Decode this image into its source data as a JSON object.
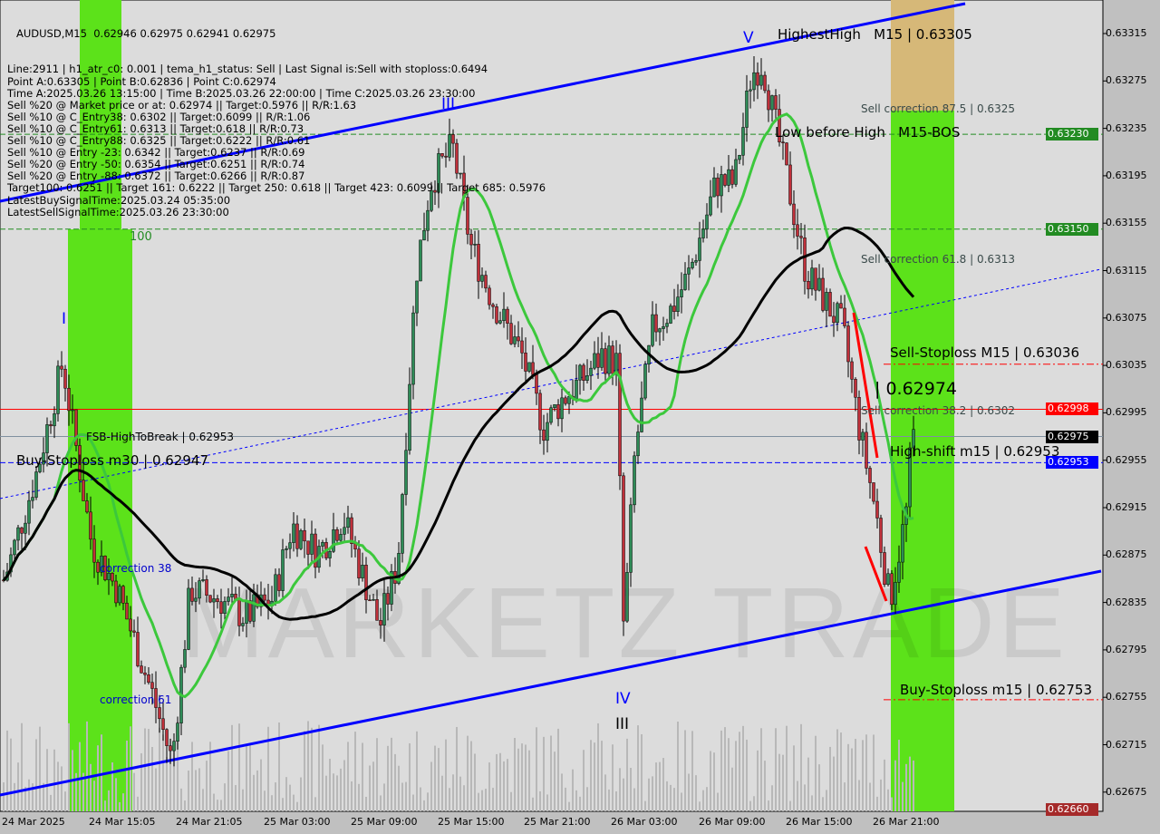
{
  "symbol_header": "AUDUSD,M15  0.62946 0.62975 0.62941 0.62975",
  "info_lines": [
    "Line:2911 | h1_atr_c0: 0.001 | tema_h1_status: Sell | Last Signal is:Sell with stoploss:0.6494",
    "Point A:0.63305 | Point B:0.62836 | Point C:0.62974",
    "Time A:2025.03.26 13:15:00 | Time B:2025.03.26 22:00:00 | Time C:2025.03.26 23:30:00",
    "Sell %20 @ Market price or at: 0.62974 || Target:0.5976 || R/R:1.63",
    "Sell %10 @ C_Entry38: 0.6302 || Target:0.6099 || R/R:1.06",
    "Sell %10 @ C_Entry61: 0.6313 || Target:0.618 || R/R:0.73",
    "Sell %10 @ C_Entry88: 0.6325 || Target:0.6222 || R/R:0.61",
    "Sell %10 @ Entry -23: 0.6342 || Target:0.6237 || R/R:0.69",
    "Sell %20 @ Entry -50: 0.6354 || Target:0.6251 || R/R:0.74",
    "Sell %20 @ Entry -88: 0.6372 || Target:0.6266 || R/R:0.87",
    "Target100: 0.6251 || Target 161: 0.6222 || Target 250: 0.618 || Target 423: 0.6099 || Target 685: 0.5976",
    "LatestBuySignalTime:2025.03.24 05:35:00",
    "LatestSellSignalTime:2025.03.26 23:30:00"
  ],
  "chart_labels": {
    "highest_high": "HighestHigh   M15 | 0.63305",
    "low_before_high": "Low before High   M15-BOS",
    "sell_corr_875": "Sell correction 87.5 | 0.6325",
    "sell_corr_618": "Sell correction 61.8 | 0.6313",
    "sell_stoploss": "Sell-Stoploss M15 | 0.63036",
    "sell_corr_382": "Sell correction 38.2 | 0.6302",
    "current_c": "| 0.62974",
    "high_shift": "High-shift m15 | 0.62953",
    "buy_stoploss_m15": "Buy-Stoploss m15 | 0.62753",
    "buy_stoploss_m30": "Buy-Stoploss m30 | 0.62947",
    "fsb": "FSB-HighToBreak | 0.62953",
    "correction_38": "correction 38",
    "correction_61": "correction 61",
    "level_100": "100",
    "wave_i": "I",
    "wave_iii": "III",
    "wave_v": "V",
    "wave_iv": "IV",
    "wave_iii_b": "III"
  },
  "watermark": "MARKETZ TRADE",
  "colors": {
    "background": "#dcdcdc",
    "bull_candle": "#2e8b57",
    "bear_candle": "#c0303a",
    "channel": "#0000ff",
    "ma_fast": "#3cc83c",
    "ma_slow": "#000000",
    "zone_green": "#5ce21a",
    "zone_tan": "#d6b878",
    "resistance": "#ff0000",
    "current_price": "#000000",
    "high_shift": "#0000ff"
  },
  "chart_data": {
    "type": "candlestick",
    "timeframe": "M15",
    "ylim": [
      0.6266,
      0.6335
    ],
    "y_ticks": [
      "0.63315",
      "0.63275",
      "0.63235",
      "0.63195",
      "0.63155",
      "0.63115",
      "0.63075",
      "0.63035",
      "0.62995",
      "0.62955",
      "0.62915",
      "0.62875",
      "0.62835",
      "0.62795",
      "0.62755",
      "0.62715",
      "0.62675"
    ],
    "x_ticks": [
      "24 Mar 2025",
      "24 Mar 15:05",
      "24 Mar 21:05",
      "25 Mar 03:00",
      "25 Mar 09:00",
      "25 Mar 15:00",
      "25 Mar 21:00",
      "26 Mar 03:00",
      "26 Mar 09:00",
      "26 Mar 15:00",
      "26 Mar 21:00"
    ],
    "price_tags": [
      {
        "value": "0.63230",
        "color": "#228b22"
      },
      {
        "value": "0.63150",
        "color": "#228b22"
      },
      {
        "value": "0.62998",
        "color": "#ff0000"
      },
      {
        "value": "0.62975",
        "color": "#000000"
      },
      {
        "value": "0.62953",
        "color": "#0000ff"
      },
      {
        "value": "0.62660",
        "color": "#a52a2a"
      }
    ],
    "price_path": [
      [
        "2025-03-24 09:15",
        0.62854
      ],
      [
        "2025-03-24 11:30",
        0.62946
      ],
      [
        "2025-03-24 13:15",
        0.63037
      ],
      [
        "2025-03-24 15:15",
        0.62884
      ],
      [
        "2025-03-24 17:00",
        0.62846
      ],
      [
        "2025-03-24 19:30",
        0.62754
      ],
      [
        "2025-03-24 20:45",
        0.62701
      ],
      [
        "2025-03-24 22:00",
        0.62846
      ],
      [
        "2025-03-25 00:00",
        0.62838
      ],
      [
        "2025-03-25 01:45",
        0.62823
      ],
      [
        "2025-03-25 03:40",
        0.62838
      ],
      [
        "2025-03-25 05:00",
        0.629
      ],
      [
        "2025-03-25 06:45",
        0.62877
      ],
      [
        "2025-03-25 08:30",
        0.62907
      ],
      [
        "2025-03-25 11:00",
        0.62815
      ],
      [
        "2025-03-25 12:15",
        0.62869
      ],
      [
        "2025-03-25 13:30",
        0.63113
      ],
      [
        "2025-03-25 14:30",
        0.63189
      ],
      [
        "2025-03-25 16:00",
        0.6322
      ],
      [
        "2025-03-25 17:15",
        0.63136
      ],
      [
        "2025-03-25 18:45",
        0.6309
      ],
      [
        "2025-03-25 20:45",
        0.63044
      ],
      [
        "2025-03-25 22:15",
        0.62983
      ],
      [
        "2025-03-25 23:30",
        0.63006
      ],
      [
        "2025-03-26 00:45",
        0.63021
      ],
      [
        "2025-03-26 02:15",
        0.63044
      ],
      [
        "2025-03-26 03:15",
        0.63037
      ],
      [
        "2025-03-26 03:45",
        0.62808
      ],
      [
        "2025-03-26 04:30",
        0.6296
      ],
      [
        "2025-03-26 05:45",
        0.63067
      ],
      [
        "2025-03-26 07:00",
        0.63082
      ],
      [
        "2025-03-26 08:15",
        0.63113
      ],
      [
        "2025-03-26 10:05",
        0.63189
      ],
      [
        "2025-03-26 11:20",
        0.63189
      ],
      [
        "2025-03-26 12:30",
        0.63281
      ],
      [
        "2025-03-26 13:15",
        0.6329
      ],
      [
        "2025-03-26 15:00",
        0.63189
      ],
      [
        "2025-03-26 16:15",
        0.63113
      ],
      [
        "2025-03-26 17:30",
        0.6309
      ],
      [
        "2025-03-26 18:45",
        0.63067
      ],
      [
        "2025-03-26 20:00",
        0.62975
      ],
      [
        "2025-03-26 21:00",
        0.62914
      ],
      [
        "2025-03-26 22:00",
        0.62836
      ],
      [
        "2025-03-26 23:10",
        0.62914
      ],
      [
        "2025-03-26 23:30",
        0.62975
      ]
    ],
    "horizontal_levels": [
      {
        "price": 0.6323,
        "style": "dashed",
        "color": "#228b22"
      },
      {
        "price": 0.6315,
        "style": "dashed",
        "color": "#228b22"
      },
      {
        "price": 0.63036,
        "style": "dashdot",
        "color": "#ff0000"
      },
      {
        "price": 0.62998,
        "style": "solid",
        "color": "#ff0000"
      },
      {
        "price": 0.62975,
        "style": "solid",
        "color": "#8090a0"
      },
      {
        "price": 0.62953,
        "style": "dashed",
        "color": "#0000ff"
      },
      {
        "price": 0.62753,
        "style": "dashdot",
        "color": "#ff0000"
      }
    ]
  }
}
